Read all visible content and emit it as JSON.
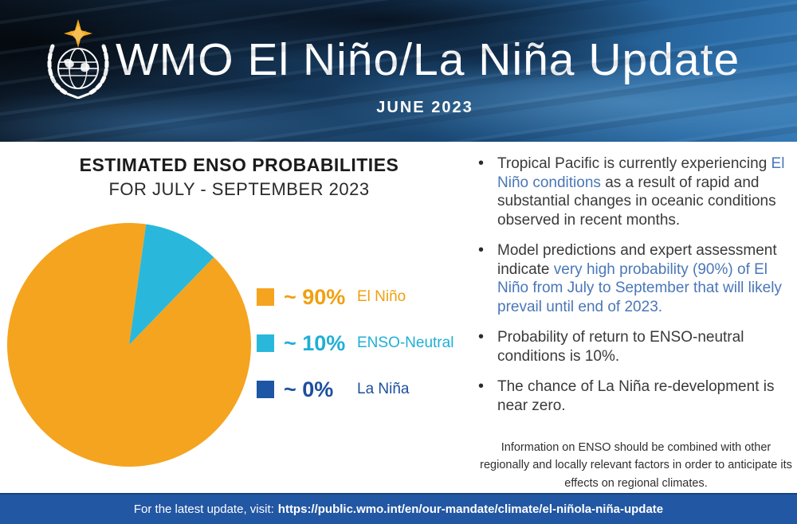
{
  "header": {
    "title": "WMO El Niño/La Niña Update",
    "subtitle": "JUNE 2023",
    "logo_icon": "wmo-logo"
  },
  "panel": {
    "title_line1": "ESTIMATED ENSO PROBABILITIES",
    "title_line2": "FOR JULY - SEPTEMBER 2023"
  },
  "chart_data": {
    "type": "pie",
    "title": "ESTIMATED ENSO PROBABILITIES FOR JULY - SEPTEMBER 2023",
    "labels": [
      "El Niño",
      "ENSO-Neutral",
      "La Niña"
    ],
    "values": [
      90,
      10,
      0
    ],
    "colors": [
      "#F5A41F",
      "#29B8DC",
      "#1D56A5"
    ],
    "start_angle_deg": 44,
    "legend_position": "right"
  },
  "legend": {
    "items": [
      {
        "swatch": "#F5A41F",
        "value": "~ 90%",
        "label": "El Niño",
        "color": "#F0A010"
      },
      {
        "swatch": "#29B8DC",
        "value": "~ 10%",
        "label": "ENSO-Neutral",
        "color": "#1FAFD6"
      },
      {
        "swatch": "#1D56A5",
        "value": "~ 0%",
        "label": "La Niña",
        "color": "#1D4F9E"
      }
    ]
  },
  "bullets": [
    {
      "segments": [
        {
          "text": "Tropical Pacific is currently experiencing ",
          "style": "dark"
        },
        {
          "text": "El Niño conditions",
          "style": "blue"
        },
        {
          "text": " as a result of rapid and substantial changes in oceanic conditions observed in recent months.",
          "style": "dark"
        }
      ]
    },
    {
      "segments": [
        {
          "text": "Model predictions and expert assessment indicate ",
          "style": "dark"
        },
        {
          "text": "very high probability (90%) of El Niño from July to September that will likely prevail until end of 2023.",
          "style": "blue"
        }
      ]
    },
    {
      "segments": [
        {
          "text": "Probability of return to ENSO-neutral conditions is 10%.",
          "style": "dark"
        }
      ]
    },
    {
      "segments": [
        {
          "text": "The chance of La Niña re-development is near zero.",
          "style": "dark"
        }
      ]
    }
  ],
  "note": "Information on ENSO should be combined with other regionally and locally relevant factors in order to anticipate its effects on regional climates.",
  "footer": {
    "prefix": "For the latest update, visit:",
    "url": "https://public.wmo.int/en/our-mandate/climate/el-niñola-niña-update"
  },
  "colors": {
    "accent_blue_text": "#4A77B8",
    "dark_text": "#3A3A3A",
    "footer_bar": "#2257A4"
  }
}
